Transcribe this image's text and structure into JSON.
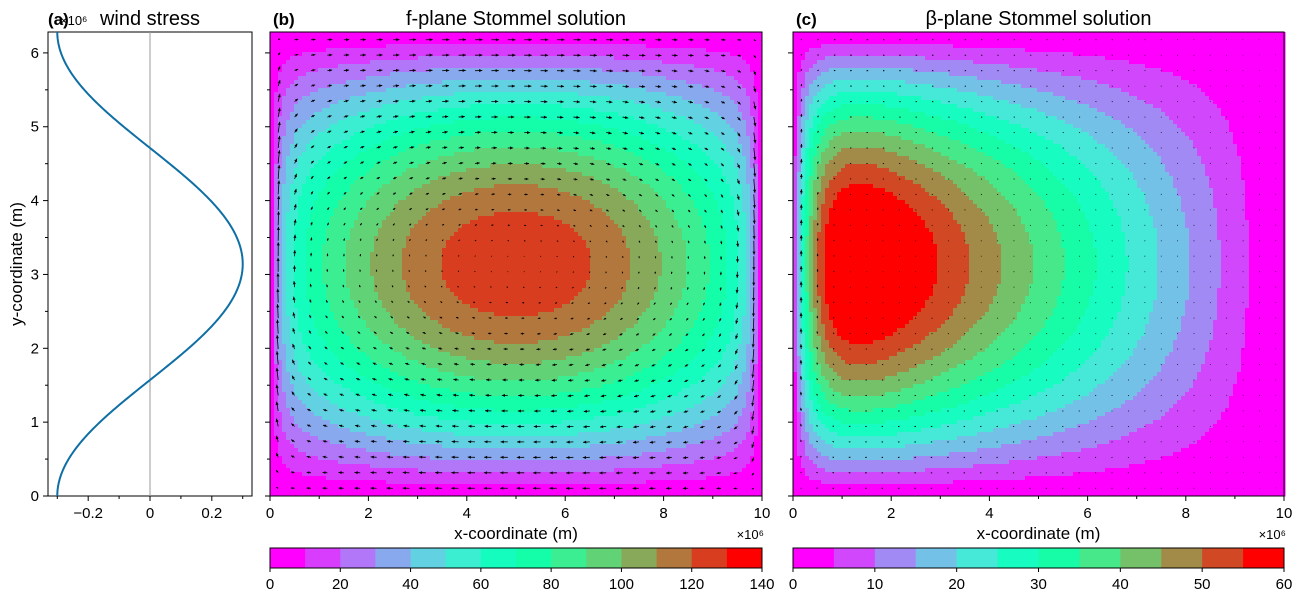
{
  "chart_data": [
    {
      "panel": "a",
      "panel_label": "(a)",
      "type": "line",
      "title": "wind stress",
      "ylabel": "y-coordinate (m)",
      "y_scale_label": "×10⁶",
      "xlim": [
        -0.33,
        0.33
      ],
      "ylim": [
        0,
        6.283
      ],
      "xticks": [
        "−0.2",
        "0",
        "0.2"
      ],
      "xtick_values": [
        -0.2,
        0,
        0.2
      ],
      "yticks": [
        "0",
        "1",
        "2",
        "3",
        "4",
        "5",
        "6"
      ],
      "ytick_values": [
        0,
        1,
        2,
        3,
        4,
        5,
        6
      ],
      "series": [
        {
          "function": "-0.3*cos(y/1e6)",
          "color": "#1f77b4"
        }
      ],
      "color": "#0f6fa5"
    },
    {
      "panel": "b",
      "panel_label": "(b)",
      "type": "heatmap",
      "title": "f-plane Stommel solution",
      "xlabel": "x-coordinate (m)",
      "x_scale_label": "×10⁶",
      "xlim": [
        0,
        10
      ],
      "ylim": [
        0,
        6.283
      ],
      "xticks": [
        "0",
        "2",
        "4",
        "6",
        "8",
        "10"
      ],
      "xtick_values": [
        0,
        2,
        4,
        6,
        8,
        10
      ],
      "colorbar": {
        "levels": [
          0,
          10,
          20,
          30,
          40,
          50,
          60,
          70,
          80,
          90,
          100,
          110,
          120,
          130,
          140
        ],
        "ticks": [
          "0",
          "20",
          "40",
          "60",
          "80",
          "100",
          "120",
          "140"
        ],
        "tick_values": [
          0,
          20,
          40,
          60,
          80,
          100,
          120,
          140
        ],
        "cmap": "rainbow"
      },
      "max_value": 128,
      "center_x": 5.0,
      "quiver": true
    },
    {
      "panel": "c",
      "panel_label": "(c)",
      "type": "heatmap",
      "title": "β-plane Stommel solution",
      "xlabel": "x-coordinate (m)",
      "x_scale_label": "×10⁶",
      "xlim": [
        0,
        10
      ],
      "ylim": [
        0,
        6.283
      ],
      "xticks": [
        "0",
        "2",
        "4",
        "6",
        "8",
        "10"
      ],
      "xtick_values": [
        0,
        2,
        4,
        6,
        8,
        10
      ],
      "colorbar": {
        "levels": [
          0,
          5,
          10,
          15,
          20,
          25,
          30,
          35,
          40,
          45,
          50,
          55,
          60
        ],
        "ticks": [
          "0",
          "10",
          "20",
          "30",
          "40",
          "50",
          "60"
        ],
        "tick_values": [
          0,
          10,
          20,
          30,
          40,
          50,
          60
        ],
        "cmap": "rainbow"
      },
      "max_value": 58,
      "center_x": 0.9,
      "quiver": true
    }
  ]
}
